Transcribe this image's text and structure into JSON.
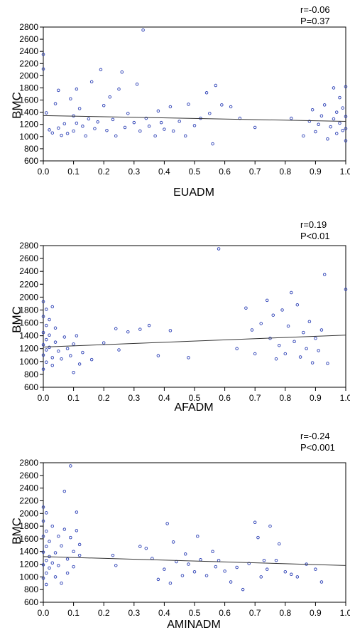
{
  "chart_data": [
    {
      "type": "scatter",
      "xlabel": "EUADM",
      "ylabel": "BMC",
      "stats": {
        "r": "r=-0.06",
        "p": "P=0.37"
      },
      "xlim": [
        0,
        1
      ],
      "ylim": [
        600,
        2800
      ],
      "xticks": [
        "0.0",
        "0.1",
        "0.2",
        "0.3",
        "0.4",
        "0.5",
        "0.6",
        "0.7",
        "0.8",
        "0.9",
        "1.0"
      ],
      "yticks": [
        "600",
        "800",
        "1000",
        "1200",
        "1400",
        "1600",
        "1800",
        "2000",
        "2200",
        "2400",
        "2600",
        "2800"
      ],
      "colors": {
        "points": "#2b3fb5",
        "line": "#333333"
      },
      "series": [
        {
          "points": [
            [
              0.0,
              2350
            ],
            [
              0.0,
              2110
            ],
            [
              0.01,
              1390
            ],
            [
              0.02,
              1110
            ],
            [
              0.03,
              1060
            ],
            [
              0.04,
              1540
            ],
            [
              0.05,
              1760
            ],
            [
              0.05,
              1140
            ],
            [
              0.06,
              1020
            ],
            [
              0.07,
              1210
            ],
            [
              0.08,
              1050
            ],
            [
              0.09,
              1620
            ],
            [
              0.1,
              1090
            ],
            [
              0.1,
              1340
            ],
            [
              0.11,
              1780
            ],
            [
              0.11,
              1220
            ],
            [
              0.12,
              1460
            ],
            [
              0.13,
              1170
            ],
            [
              0.14,
              1010
            ],
            [
              0.15,
              1290
            ],
            [
              0.16,
              1900
            ],
            [
              0.17,
              1130
            ],
            [
              0.18,
              1240
            ],
            [
              0.19,
              2100
            ],
            [
              0.2,
              1510
            ],
            [
              0.21,
              1100
            ],
            [
              0.22,
              1650
            ],
            [
              0.23,
              1280
            ],
            [
              0.24,
              1010
            ],
            [
              0.25,
              1780
            ],
            [
              0.26,
              2060
            ],
            [
              0.27,
              1150
            ],
            [
              0.28,
              1380
            ],
            [
              0.3,
              1230
            ],
            [
              0.31,
              1860
            ],
            [
              0.32,
              1090
            ],
            [
              0.33,
              2750
            ],
            [
              0.34,
              1300
            ],
            [
              0.35,
              1170
            ],
            [
              0.37,
              1010
            ],
            [
              0.38,
              1420
            ],
            [
              0.39,
              1230
            ],
            [
              0.4,
              1120
            ],
            [
              0.42,
              1490
            ],
            [
              0.43,
              1090
            ],
            [
              0.45,
              1250
            ],
            [
              0.47,
              1010
            ],
            [
              0.48,
              1530
            ],
            [
              0.5,
              1180
            ],
            [
              0.52,
              1300
            ],
            [
              0.54,
              1720
            ],
            [
              0.55,
              1380
            ],
            [
              0.56,
              880
            ],
            [
              0.57,
              1840
            ],
            [
              0.59,
              1520
            ],
            [
              0.62,
              1490
            ],
            [
              0.65,
              1300
            ],
            [
              0.7,
              1150
            ],
            [
              0.82,
              1300
            ],
            [
              0.86,
              1010
            ],
            [
              0.88,
              1250
            ],
            [
              0.89,
              1440
            ],
            [
              0.9,
              1080
            ],
            [
              0.91,
              1200
            ],
            [
              0.92,
              1340
            ],
            [
              0.93,
              1520
            ],
            [
              0.94,
              960
            ],
            [
              0.95,
              1160
            ],
            [
              0.96,
              1290
            ],
            [
              0.96,
              1800
            ],
            [
              0.97,
              1400
            ],
            [
              0.97,
              1050
            ],
            [
              0.98,
              1640
            ],
            [
              0.98,
              1220
            ],
            [
              0.99,
              1100
            ],
            [
              0.99,
              1470
            ],
            [
              1.0,
              1330
            ],
            [
              1.0,
              930
            ],
            [
              1.0,
              1820
            ],
            [
              1.0,
              1130
            ]
          ]
        }
      ],
      "fit": {
        "x": [
          0,
          1
        ],
        "y": [
          1345,
          1250
        ]
      }
    },
    {
      "type": "scatter",
      "xlabel": "AFADM",
      "ylabel": "BMC",
      "stats": {
        "r": "r=0.19",
        "p": "P<0.01"
      },
      "xlim": [
        0,
        1
      ],
      "ylim": [
        600,
        2800
      ],
      "xticks": [
        "0.0",
        "0.1",
        "0.2",
        "0.3",
        "0.4",
        "0.5",
        "0.6",
        "0.7",
        "0.8",
        "0.9",
        "1.0"
      ],
      "yticks": [
        "600",
        "800",
        "1000",
        "1200",
        "1400",
        "1600",
        "1800",
        "2000",
        "2200",
        "2400",
        "2600",
        "2800"
      ],
      "colors": {
        "points": "#2b3fb5",
        "line": "#333333"
      },
      "series": [
        {
          "points": [
            [
              0.0,
              1930
            ],
            [
              0.0,
              1700
            ],
            [
              0.0,
              1450
            ],
            [
              0.0,
              1260
            ],
            [
              0.0,
              1100
            ],
            [
              0.0,
              880
            ],
            [
              0.01,
              1810
            ],
            [
              0.01,
              1560
            ],
            [
              0.01,
              1340
            ],
            [
              0.01,
              1180
            ],
            [
              0.01,
              990
            ],
            [
              0.02,
              1650
            ],
            [
              0.02,
              1410
            ],
            [
              0.02,
              1220
            ],
            [
              0.03,
              1850
            ],
            [
              0.03,
              1060
            ],
            [
              0.03,
              940
            ],
            [
              0.04,
              1520
            ],
            [
              0.04,
              1300
            ],
            [
              0.05,
              1160
            ],
            [
              0.06,
              1040
            ],
            [
              0.07,
              1380
            ],
            [
              0.08,
              1200
            ],
            [
              0.09,
              1090
            ],
            [
              0.1,
              1270
            ],
            [
              0.1,
              830
            ],
            [
              0.11,
              1400
            ],
            [
              0.12,
              960
            ],
            [
              0.13,
              1140
            ],
            [
              0.16,
              1030
            ],
            [
              0.2,
              1290
            ],
            [
              0.24,
              1510
            ],
            [
              0.25,
              1180
            ],
            [
              0.28,
              1460
            ],
            [
              0.32,
              1500
            ],
            [
              0.35,
              1560
            ],
            [
              0.38,
              1090
            ],
            [
              0.42,
              1480
            ],
            [
              0.48,
              1060
            ],
            [
              0.58,
              2750
            ],
            [
              0.64,
              1200
            ],
            [
              0.67,
              1830
            ],
            [
              0.69,
              1490
            ],
            [
              0.7,
              1120
            ],
            [
              0.72,
              1590
            ],
            [
              0.74,
              1950
            ],
            [
              0.75,
              1360
            ],
            [
              0.76,
              1720
            ],
            [
              0.77,
              1040
            ],
            [
              0.78,
              1250
            ],
            [
              0.79,
              1800
            ],
            [
              0.8,
              1120
            ],
            [
              0.81,
              1550
            ],
            [
              0.82,
              2070
            ],
            [
              0.83,
              1310
            ],
            [
              0.84,
              1880
            ],
            [
              0.85,
              1070
            ],
            [
              0.86,
              1450
            ],
            [
              0.87,
              1200
            ],
            [
              0.88,
              1620
            ],
            [
              0.89,
              980
            ],
            [
              0.9,
              1360
            ],
            [
              0.91,
              1170
            ],
            [
              0.92,
              1490
            ],
            [
              0.93,
              2350
            ],
            [
              0.94,
              970
            ],
            [
              1.0,
              2120
            ]
          ]
        }
      ],
      "fit": {
        "x": [
          0,
          1
        ],
        "y": [
          1225,
          1410
        ]
      }
    },
    {
      "type": "scatter",
      "xlabel": "AMINADM",
      "ylabel": "BMC",
      "stats": {
        "r": "r=-0.24",
        "p": "P<0.001"
      },
      "xlim": [
        0,
        1
      ],
      "ylim": [
        600,
        2800
      ],
      "xticks": [
        "0.0",
        "0.1",
        "0.2",
        "0.3",
        "0.4",
        "0.5",
        "0.6",
        "0.7",
        "0.8",
        "0.9",
        "1.0"
      ],
      "yticks": [
        "600",
        "800",
        "1000",
        "1200",
        "1400",
        "1600",
        "1800",
        "2000",
        "2200",
        "2400",
        "2600",
        "2800"
      ],
      "colors": {
        "points": "#2b3fb5",
        "line": "#333333"
      },
      "series": [
        {
          "points": [
            [
              0.0,
              2100
            ],
            [
              0.0,
              1880
            ],
            [
              0.0,
              1640
            ],
            [
              0.0,
              1390
            ],
            [
              0.0,
              1190
            ],
            [
              0.0,
              980
            ],
            [
              0.01,
              2010
            ],
            [
              0.01,
              1720
            ],
            [
              0.01,
              1480
            ],
            [
              0.01,
              1260
            ],
            [
              0.01,
              1060
            ],
            [
              0.01,
              880
            ],
            [
              0.02,
              1560
            ],
            [
              0.02,
              1320
            ],
            [
              0.02,
              1140
            ],
            [
              0.03,
              1800
            ],
            [
              0.03,
              1220
            ],
            [
              0.04,
              1380
            ],
            [
              0.04,
              1000
            ],
            [
              0.05,
              1640
            ],
            [
              0.05,
              1180
            ],
            [
              0.06,
              1490
            ],
            [
              0.06,
              900
            ],
            [
              0.07,
              1750
            ],
            [
              0.07,
              2350
            ],
            [
              0.08,
              1280
            ],
            [
              0.08,
              1060
            ],
            [
              0.09,
              2750
            ],
            [
              0.09,
              1620
            ],
            [
              0.1,
              1400
            ],
            [
              0.1,
              1160
            ],
            [
              0.11,
              2020
            ],
            [
              0.11,
              1730
            ],
            [
              0.12,
              1340
            ],
            [
              0.12,
              1510
            ],
            [
              0.23,
              1340
            ],
            [
              0.24,
              1180
            ],
            [
              0.32,
              1480
            ],
            [
              0.34,
              1450
            ],
            [
              0.36,
              1290
            ],
            [
              0.38,
              960
            ],
            [
              0.4,
              1120
            ],
            [
              0.41,
              1840
            ],
            [
              0.42,
              900
            ],
            [
              0.43,
              1550
            ],
            [
              0.44,
              1240
            ],
            [
              0.46,
              1020
            ],
            [
              0.47,
              1360
            ],
            [
              0.48,
              1200
            ],
            [
              0.5,
              1080
            ],
            [
              0.51,
              1640
            ],
            [
              0.52,
              1270
            ],
            [
              0.54,
              1020
            ],
            [
              0.56,
              1400
            ],
            [
              0.57,
              1160
            ],
            [
              0.58,
              1260
            ],
            [
              0.6,
              1090
            ],
            [
              0.62,
              920
            ],
            [
              0.64,
              1150
            ],
            [
              0.66,
              800
            ],
            [
              0.68,
              1210
            ],
            [
              0.7,
              1860
            ],
            [
              0.71,
              1620
            ],
            [
              0.72,
              1000
            ],
            [
              0.73,
              1260
            ],
            [
              0.74,
              1120
            ],
            [
              0.75,
              1800
            ],
            [
              0.77,
              1260
            ],
            [
              0.78,
              1520
            ],
            [
              0.8,
              1080
            ],
            [
              0.82,
              1040
            ],
            [
              0.84,
              1000
            ],
            [
              0.87,
              1200
            ],
            [
              0.9,
              1120
            ],
            [
              0.92,
              920
            ]
          ]
        }
      ],
      "fit": {
        "x": [
          0,
          1
        ],
        "y": [
          1320,
          1180
        ]
      }
    }
  ]
}
